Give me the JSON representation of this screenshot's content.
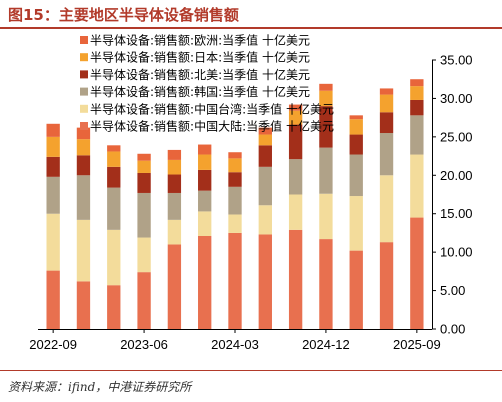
{
  "header": {
    "title": "图15：主要地区半导体设备销售额"
  },
  "footer": {
    "source": "资料来源：ifind，中港证券研究所"
  },
  "chart_data": {
    "type": "bar",
    "stacked": true,
    "title": "",
    "xlabel": "",
    "ylabel": "",
    "ylim": [
      0,
      35
    ],
    "yticks": [
      "0.00",
      "5.00",
      "10.00",
      "15.00",
      "20.00",
      "25.00",
      "30.00",
      "35.00"
    ],
    "y_axis_side": "right",
    "legend_position": "top-left",
    "x_tick_labels": [
      "2022-09",
      "2023-06",
      "2024-03",
      "2024-12",
      "2025-09"
    ],
    "categories": [
      "2022-09",
      "2022-12",
      "2023-03",
      "2023-06",
      "2023-09",
      "2023-12",
      "2024-03",
      "2024-06",
      "2024-09",
      "2024-12",
      "2025-03",
      "2025-06",
      "2025-09"
    ],
    "series": [
      {
        "name": "半导体设备:销售额:中国大陆:当季值 十亿美元",
        "color": "#e8704f",
        "values": [
          7.6,
          6.2,
          5.7,
          7.4,
          11.0,
          12.1,
          12.5,
          12.3,
          12.9,
          11.7,
          10.2,
          11.3,
          14.5
        ]
      },
      {
        "name": "半导体设备:销售额:中国台湾:当季值 十亿美元",
        "color": "#f3dc9b",
        "values": [
          7.4,
          8.0,
          7.2,
          4.5,
          3.2,
          3.2,
          2.4,
          3.8,
          4.6,
          5.9,
          7.1,
          8.7,
          8.2
        ]
      },
      {
        "name": "半导体设备:销售额:韩国:当季值 十亿美元",
        "color": "#b0a288",
        "values": [
          4.8,
          5.8,
          5.5,
          5.8,
          3.5,
          2.7,
          3.6,
          5.0,
          4.6,
          6.0,
          5.4,
          5.5,
          5.1
        ]
      },
      {
        "name": "半导体设备:销售额:北美:当季值 十亿美元",
        "color": "#a32f1a",
        "values": [
          2.6,
          2.6,
          2.7,
          2.6,
          2.4,
          2.7,
          1.9,
          2.8,
          4.5,
          5.4,
          2.6,
          2.7,
          2.0
        ]
      },
      {
        "name": "半导体设备:销售额:日本:当季值 十亿美元",
        "color": "#f4a22e",
        "values": [
          2.6,
          2.1,
          2.0,
          1.6,
          1.9,
          2.0,
          1.8,
          1.4,
          1.8,
          2.0,
          2.0,
          2.3,
          1.8
        ]
      },
      {
        "name": "半导体设备:销售额:欧洲:当季值 十亿美元",
        "color": "#e8653b",
        "values": [
          1.7,
          1.5,
          0.8,
          0.9,
          1.3,
          1.3,
          0.8,
          0.9,
          0.8,
          0.9,
          0.5,
          0.8,
          0.9
        ]
      }
    ],
    "legend_order": [
      5,
      4,
      3,
      2,
      1,
      0
    ]
  }
}
